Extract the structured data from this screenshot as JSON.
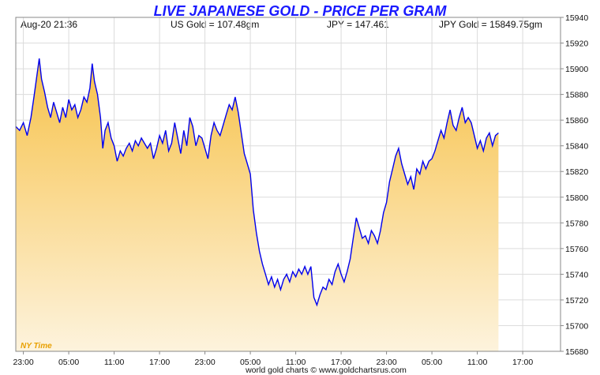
{
  "colors": {
    "title": "#1a1aff",
    "line": "#0000ee",
    "fill_top": "#f7c24a",
    "fill_bottom": "#fdf3dd",
    "grid": "#dcdcdc",
    "nytime": "#e8a000"
  },
  "chart_data": {
    "type": "area",
    "title": "LIVE JAPANESE GOLD - PRICE PER GRAM",
    "header": {
      "timestamp": "Aug-20  21:36",
      "us_gold": "US Gold = 107.48gm",
      "jpy": "JPY = 147.461",
      "jpy_gold": "JPY Gold = 15849.75gm"
    },
    "x_tick_labels": [
      "23:00",
      "05:00",
      "11:00",
      "17:00",
      "23:00",
      "05:00",
      "11:00",
      "17:00",
      "23:00",
      "05:00",
      "11:00",
      "17:00"
    ],
    "y_ticks": [
      15680,
      15700,
      15720,
      15740,
      15760,
      15780,
      15800,
      15820,
      15840,
      15860,
      15880,
      15900,
      15920,
      15940
    ],
    "ylim": [
      15680,
      15940
    ],
    "x_range_hours": [
      0,
      72
    ],
    "grid": true,
    "time_label": "NY Time",
    "footer": "world gold charts © www.goldchartsrus.com",
    "series": [
      {
        "values": [
          [
            0.0,
            15855
          ],
          [
            0.5,
            15852
          ],
          [
            1.0,
            15858
          ],
          [
            1.5,
            15848
          ],
          [
            2.0,
            15862
          ],
          [
            2.4,
            15878
          ],
          [
            2.8,
            15895
          ],
          [
            3.1,
            15908
          ],
          [
            3.4,
            15892
          ],
          [
            3.8,
            15882
          ],
          [
            4.2,
            15870
          ],
          [
            4.6,
            15862
          ],
          [
            5.0,
            15874
          ],
          [
            5.4,
            15866
          ],
          [
            5.8,
            15858
          ],
          [
            6.2,
            15870
          ],
          [
            6.6,
            15862
          ],
          [
            7.0,
            15876
          ],
          [
            7.4,
            15868
          ],
          [
            7.8,
            15872
          ],
          [
            8.2,
            15862
          ],
          [
            8.6,
            15868
          ],
          [
            9.0,
            15878
          ],
          [
            9.4,
            15874
          ],
          [
            9.8,
            15885
          ],
          [
            10.1,
            15904
          ],
          [
            10.4,
            15890
          ],
          [
            10.8,
            15880
          ],
          [
            11.2,
            15862
          ],
          [
            11.5,
            15838
          ],
          [
            11.8,
            15852
          ],
          [
            12.2,
            15858
          ],
          [
            12.6,
            15846
          ],
          [
            13.0,
            15840
          ],
          [
            13.4,
            15828
          ],
          [
            13.8,
            15836
          ],
          [
            14.2,
            15832
          ],
          [
            14.6,
            15838
          ],
          [
            15.0,
            15842
          ],
          [
            15.4,
            15836
          ],
          [
            15.8,
            15844
          ],
          [
            16.2,
            15840
          ],
          [
            16.6,
            15846
          ],
          [
            17.0,
            15842
          ],
          [
            17.4,
            15838
          ],
          [
            17.8,
            15842
          ],
          [
            18.2,
            15830
          ],
          [
            18.6,
            15838
          ],
          [
            19.0,
            15848
          ],
          [
            19.4,
            15842
          ],
          [
            19.8,
            15852
          ],
          [
            20.2,
            15836
          ],
          [
            20.6,
            15842
          ],
          [
            21.0,
            15858
          ],
          [
            21.4,
            15846
          ],
          [
            21.8,
            15834
          ],
          [
            22.2,
            15852
          ],
          [
            22.6,
            15840
          ],
          [
            23.0,
            15862
          ],
          [
            23.4,
            15855
          ],
          [
            23.8,
            15840
          ],
          [
            24.2,
            15848
          ],
          [
            24.6,
            15846
          ],
          [
            25.0,
            15838
          ],
          [
            25.4,
            15830
          ],
          [
            25.8,
            15848
          ],
          [
            26.2,
            15858
          ],
          [
            26.6,
            15852
          ],
          [
            27.0,
            15848
          ],
          [
            27.4,
            15856
          ],
          [
            27.8,
            15864
          ],
          [
            28.2,
            15872
          ],
          [
            28.6,
            15868
          ],
          [
            29.0,
            15878
          ],
          [
            29.4,
            15866
          ],
          [
            29.8,
            15850
          ],
          [
            30.2,
            15834
          ],
          [
            30.6,
            15826
          ],
          [
            31.0,
            15818
          ],
          [
            31.4,
            15790
          ],
          [
            31.8,
            15772
          ],
          [
            32.2,
            15758
          ],
          [
            32.6,
            15748
          ],
          [
            33.0,
            15740
          ],
          [
            33.4,
            15732
          ],
          [
            33.8,
            15738
          ],
          [
            34.2,
            15730
          ],
          [
            34.6,
            15736
          ],
          [
            35.0,
            15728
          ],
          [
            35.4,
            15736
          ],
          [
            35.8,
            15740
          ],
          [
            36.2,
            15734
          ],
          [
            36.6,
            15742
          ],
          [
            37.0,
            15738
          ],
          [
            37.4,
            15744
          ],
          [
            37.8,
            15740
          ],
          [
            38.2,
            15746
          ],
          [
            38.6,
            15740
          ],
          [
            39.0,
            15746
          ],
          [
            39.4,
            15722
          ],
          [
            39.8,
            15716
          ],
          [
            40.2,
            15724
          ],
          [
            40.6,
            15730
          ],
          [
            41.0,
            15728
          ],
          [
            41.4,
            15736
          ],
          [
            41.8,
            15732
          ],
          [
            42.2,
            15742
          ],
          [
            42.6,
            15748
          ],
          [
            43.0,
            15740
          ],
          [
            43.4,
            15734
          ],
          [
            43.8,
            15742
          ],
          [
            44.2,
            15752
          ],
          [
            44.6,
            15768
          ],
          [
            45.0,
            15784
          ],
          [
            45.4,
            15776
          ],
          [
            45.8,
            15768
          ],
          [
            46.2,
            15770
          ],
          [
            46.6,
            15764
          ],
          [
            47.0,
            15774
          ],
          [
            47.4,
            15770
          ],
          [
            47.8,
            15764
          ],
          [
            48.2,
            15774
          ],
          [
            48.6,
            15788
          ],
          [
            49.0,
            15796
          ],
          [
            49.4,
            15812
          ],
          [
            49.8,
            15822
          ],
          [
            50.2,
            15832
          ],
          [
            50.6,
            15838
          ],
          [
            51.0,
            15826
          ],
          [
            51.4,
            15818
          ],
          [
            51.8,
            15810
          ],
          [
            52.2,
            15816
          ],
          [
            52.6,
            15806
          ],
          [
            53.0,
            15822
          ],
          [
            53.4,
            15818
          ],
          [
            53.8,
            15828
          ],
          [
            54.2,
            15822
          ],
          [
            54.6,
            15828
          ],
          [
            55.0,
            15830
          ],
          [
            55.4,
            15836
          ],
          [
            55.8,
            15844
          ],
          [
            56.2,
            15852
          ],
          [
            56.6,
            15846
          ],
          [
            57.0,
            15858
          ],
          [
            57.4,
            15868
          ],
          [
            57.8,
            15856
          ],
          [
            58.2,
            15852
          ],
          [
            58.6,
            15862
          ],
          [
            59.0,
            15870
          ],
          [
            59.4,
            15858
          ],
          [
            59.8,
            15862
          ],
          [
            60.2,
            15858
          ],
          [
            60.6,
            15848
          ],
          [
            61.0,
            15838
          ],
          [
            61.4,
            15844
          ],
          [
            61.8,
            15836
          ],
          [
            62.2,
            15846
          ],
          [
            62.6,
            15850
          ],
          [
            63.0,
            15840
          ],
          [
            63.4,
            15848
          ],
          [
            63.8,
            15850
          ]
        ]
      }
    ]
  }
}
